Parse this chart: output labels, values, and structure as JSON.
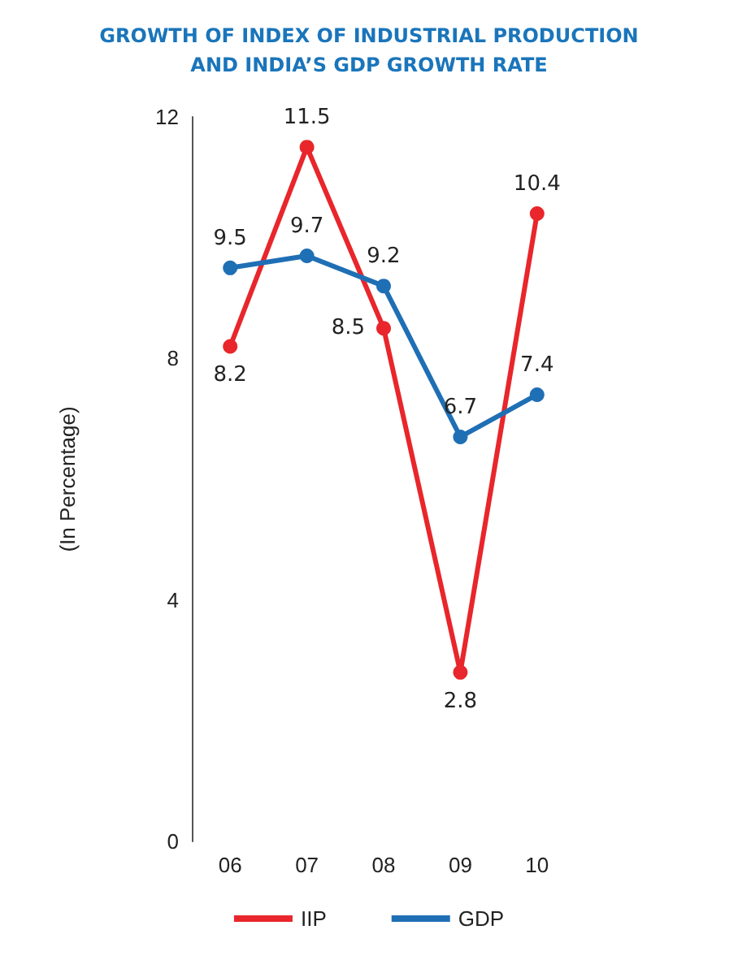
{
  "chart_data": {
    "type": "line",
    "title": "GROWTH OF INDEX OF INDUSTRIAL PRODUCTION\nAND INDIA’S GDP GROWTH RATE",
    "ylabel": "(In Percentage)",
    "categories": [
      "06",
      "07",
      "08",
      "09",
      "10"
    ],
    "series": [
      {
        "name": "IIP",
        "color": "#e8262b",
        "values": [
          8.2,
          11.5,
          8.5,
          2.8,
          10.4
        ]
      },
      {
        "name": "GDP",
        "color": "#1f6fb5",
        "values": [
          9.5,
          9.7,
          9.2,
          6.7,
          7.4
        ]
      }
    ],
    "ylim": [
      0,
      12
    ],
    "yticks": [
      0,
      4,
      8,
      12
    ],
    "grid": false,
    "legend": "bottom",
    "marker": "circle",
    "line_style": "solid",
    "data_labels": true
  }
}
